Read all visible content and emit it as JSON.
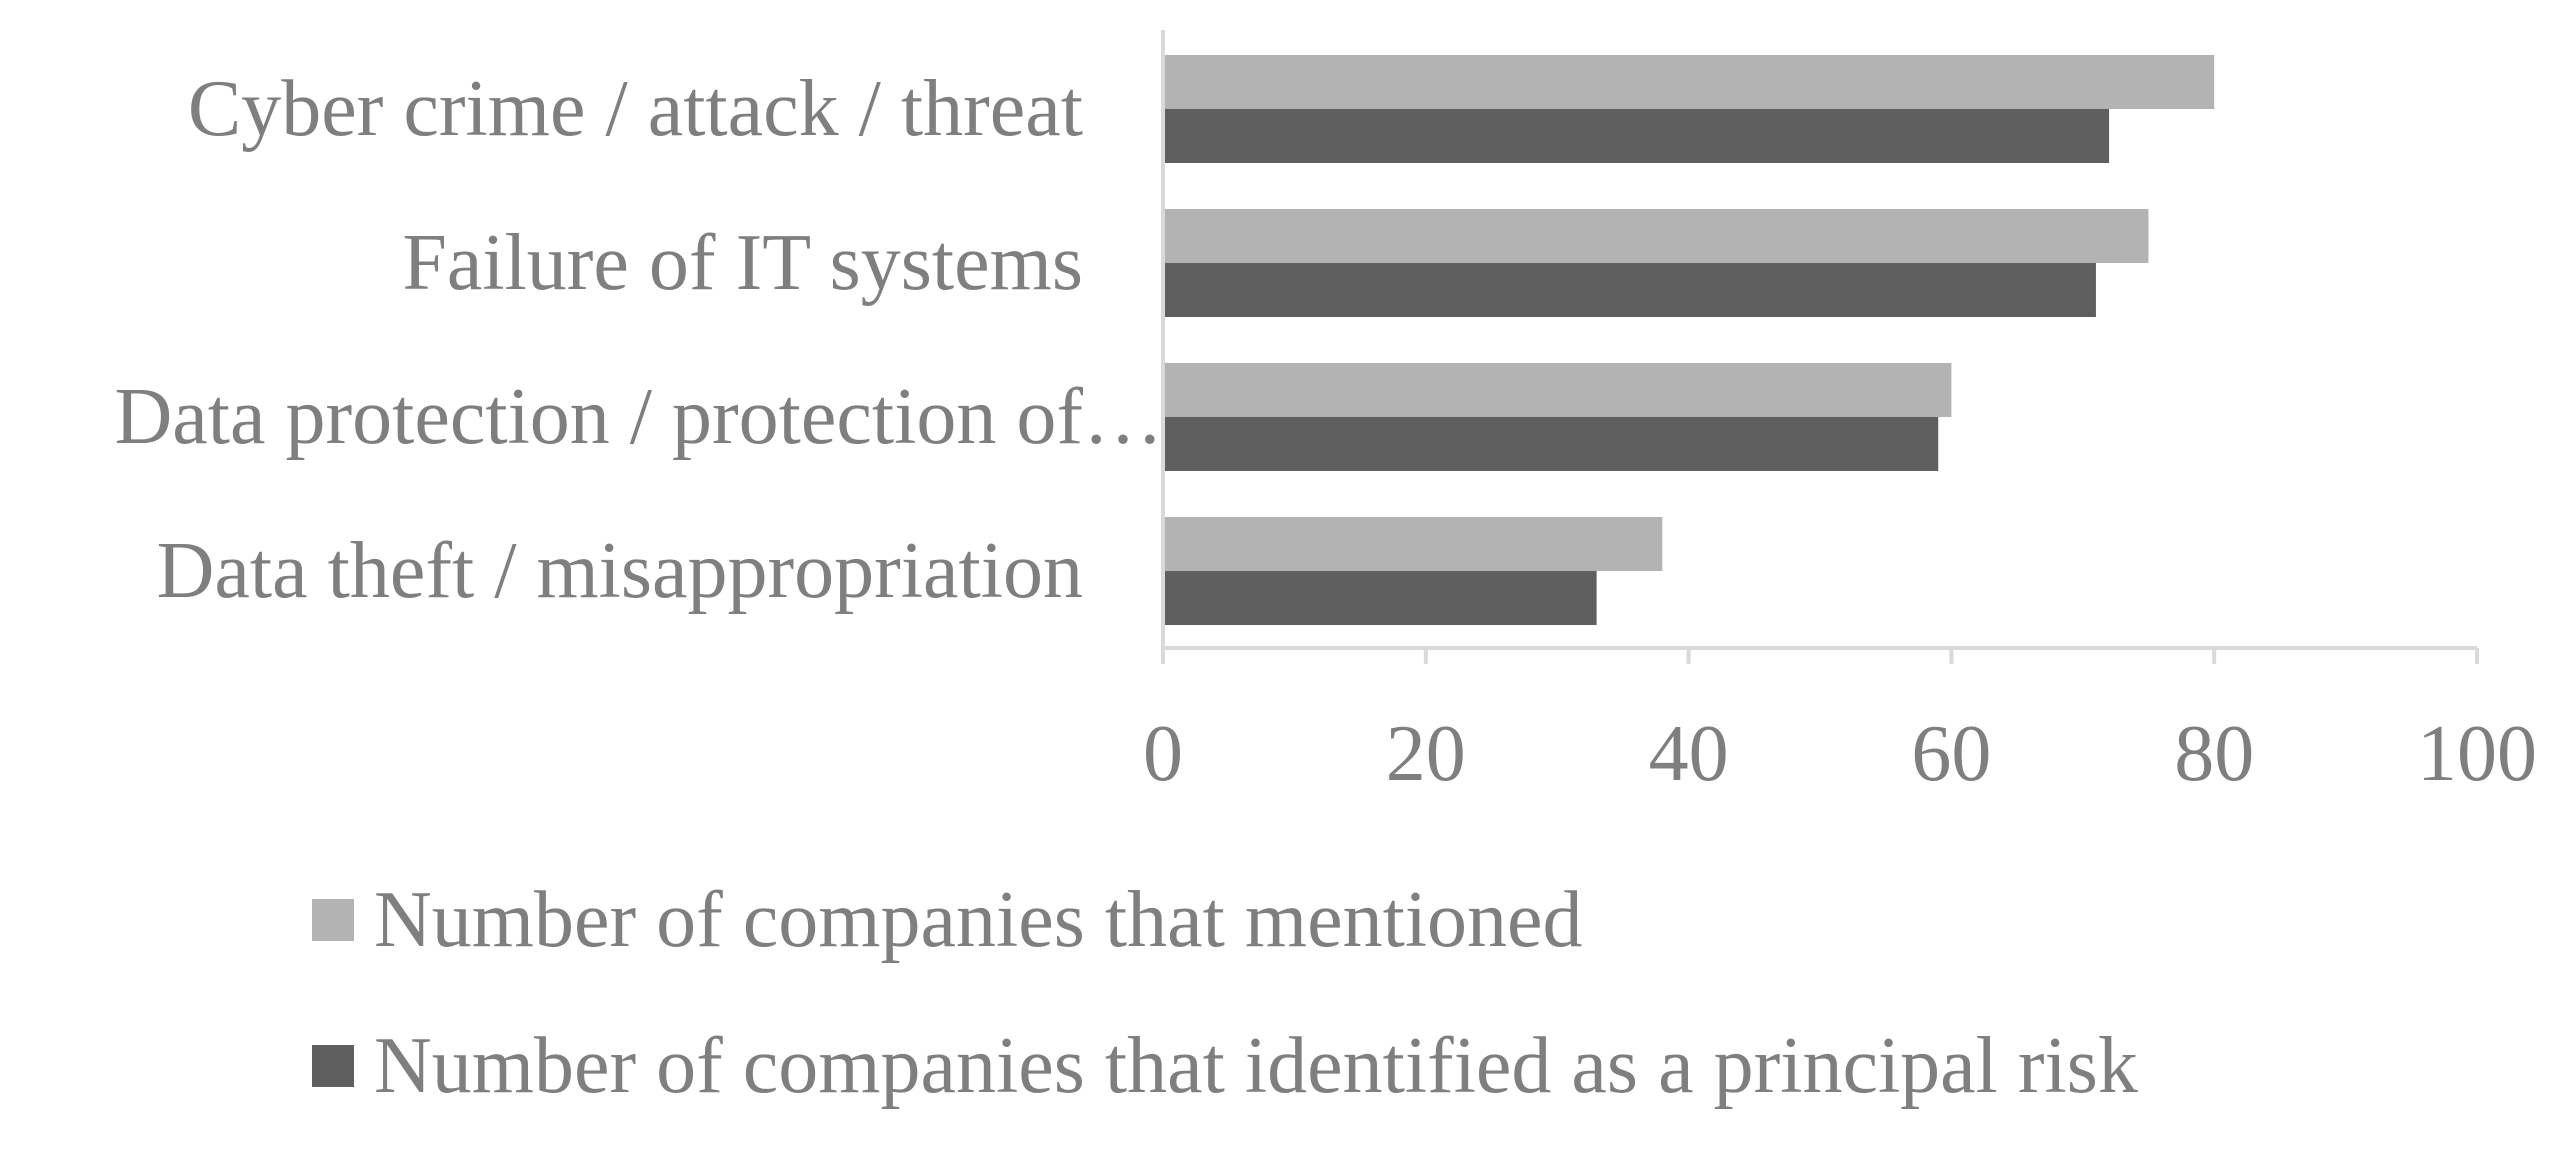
{
  "chart_data": {
    "type": "bar",
    "orientation": "horizontal",
    "categories": [
      "Cyber crime / attack / threat",
      "Failure of IT systems",
      "Data protection / protection of…",
      "Data theft / misappropriation"
    ],
    "series": [
      {
        "name": "Number of companies that mentioned",
        "color": "#b3b3b3",
        "values": [
          80,
          75,
          60,
          38
        ]
      },
      {
        "name": "Number of companies that identified as a principal risk",
        "color": "#5f5f5f",
        "values": [
          72,
          71,
          59,
          33
        ]
      }
    ],
    "xlim": [
      0,
      100
    ],
    "xticks": [
      "0",
      "20",
      "40",
      "60",
      "80",
      "100"
    ],
    "xlabel": "",
    "ylabel": "",
    "grid": false,
    "legend_position": "bottom"
  }
}
